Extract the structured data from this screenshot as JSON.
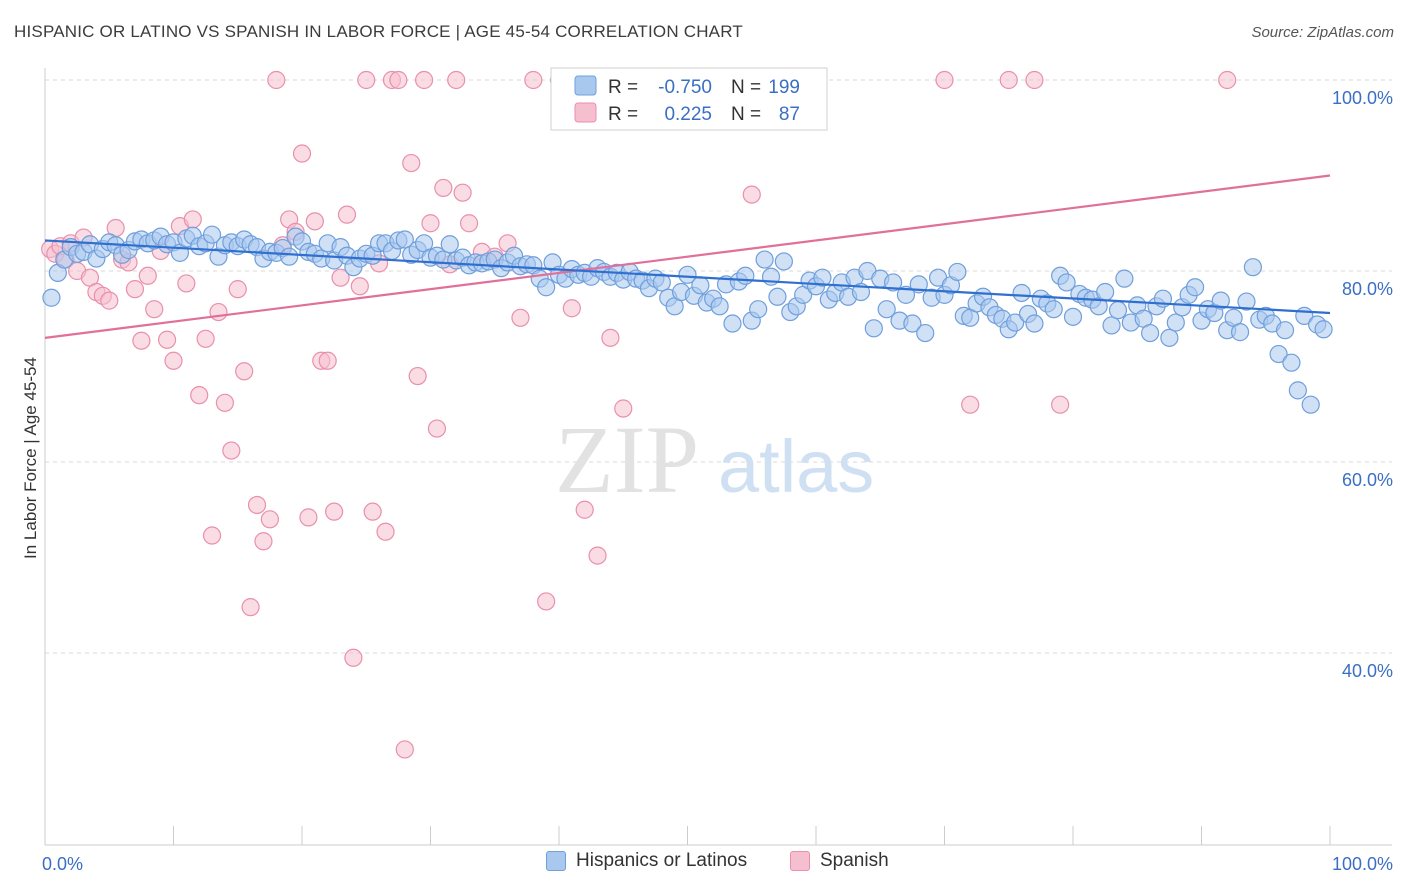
{
  "title": "HISPANIC OR LATINO VS SPANISH IN LABOR FORCE | AGE 45-54 CORRELATION CHART",
  "source": "Source: ZipAtlas.com",
  "watermark": {
    "zip": "ZIP",
    "atlas": "atlas"
  },
  "colors": {
    "blue_fill": "#a9c8ee",
    "blue_stroke": "#6f9fdc",
    "blue_line": "#2f6fcf",
    "pink_fill": "#f6bfd0",
    "pink_stroke": "#ea8fac",
    "pink_line": "#e0709a",
    "label_blue": "#3a6fc4",
    "grid": "#d8d8d8"
  },
  "legend": {
    "items": [
      {
        "r_label": "R =",
        "r_value": "-0.750",
        "n_label": "N =",
        "n_value": "199"
      },
      {
        "r_label": "R =",
        "r_value": "0.225",
        "n_label": "N =",
        "n_value": "87"
      }
    ]
  },
  "bottom_legend": [
    "Hispanics or Latinos",
    "Spanish"
  ],
  "chart_data": {
    "type": "scatter",
    "title": "HISPANIC OR LATINO VS SPANISH IN LABOR FORCE | AGE 45-54 CORRELATION CHART",
    "xlabel": "",
    "ylabel": "In Labor Force | Age 45-54",
    "xlim": [
      0,
      100
    ],
    "ylim": [
      22,
      102
    ],
    "x_ticks": [
      "0.0%",
      "100.0%"
    ],
    "y_ticks": [
      {
        "value": 100,
        "label": "100.0%"
      },
      {
        "value": 80,
        "label": "80.0%"
      },
      {
        "value": 60,
        "label": "60.0%"
      },
      {
        "value": 40,
        "label": "40.0%"
      }
    ],
    "grid": true,
    "legend_position": "top-center",
    "series": [
      {
        "name": "Hispanics or Latinos",
        "r": -0.75,
        "n": 199,
        "trend": {
          "x": [
            0,
            100
          ],
          "y": [
            83.2,
            75.6
          ]
        },
        "points": [
          [
            0.5,
            77.2
          ],
          [
            1,
            79.8
          ],
          [
            1.5,
            81.2
          ],
          [
            2,
            82.5
          ],
          [
            2.5,
            81.8
          ],
          [
            3,
            82.0
          ],
          [
            3.5,
            82.8
          ],
          [
            4,
            81.3
          ],
          [
            4.5,
            82.3
          ],
          [
            5,
            83.0
          ],
          [
            5.5,
            82.7
          ],
          [
            6,
            81.7
          ],
          [
            6.5,
            82.2
          ],
          [
            7,
            83.1
          ],
          [
            7.5,
            83.3
          ],
          [
            8,
            82.9
          ],
          [
            8.5,
            83.2
          ],
          [
            9,
            83.6
          ],
          [
            9.5,
            82.8
          ],
          [
            10,
            83.0
          ],
          [
            10.5,
            81.9
          ],
          [
            11,
            83.4
          ],
          [
            11.5,
            83.7
          ],
          [
            12,
            82.6
          ],
          [
            12.5,
            82.9
          ],
          [
            13,
            83.8
          ],
          [
            13.5,
            81.5
          ],
          [
            14,
            82.7
          ],
          [
            14.5,
            83.0
          ],
          [
            15,
            82.6
          ],
          [
            15.5,
            83.3
          ],
          [
            16,
            82.8
          ],
          [
            16.5,
            82.5
          ],
          [
            17,
            81.3
          ],
          [
            17.5,
            82.0
          ],
          [
            18,
            81.9
          ],
          [
            18.5,
            82.4
          ],
          [
            19,
            81.5
          ],
          [
            19.5,
            83.6
          ],
          [
            20,
            83.1
          ],
          [
            20.5,
            82.0
          ],
          [
            21,
            81.8
          ],
          [
            21.5,
            81.3
          ],
          [
            22,
            82.9
          ],
          [
            22.5,
            81.1
          ],
          [
            23,
            82.5
          ],
          [
            23.5,
            81.6
          ],
          [
            24,
            80.4
          ],
          [
            24.5,
            81.3
          ],
          [
            25,
            81.8
          ],
          [
            25.5,
            81.6
          ],
          [
            26,
            82.9
          ],
          [
            26.5,
            82.9
          ],
          [
            27,
            82.1
          ],
          [
            27.5,
            83.2
          ],
          [
            28,
            83.3
          ],
          [
            28.5,
            81.7
          ],
          [
            29,
            82.2
          ],
          [
            29.5,
            82.9
          ],
          [
            30,
            81.4
          ],
          [
            30.5,
            81.6
          ],
          [
            31,
            81.2
          ],
          [
            31.5,
            82.8
          ],
          [
            32,
            81.1
          ],
          [
            32.5,
            81.4
          ],
          [
            33,
            80.6
          ],
          [
            33.5,
            80.9
          ],
          [
            34,
            80.8
          ],
          [
            34.5,
            81.0
          ],
          [
            35,
            81.2
          ],
          [
            35.5,
            80.3
          ],
          [
            36,
            80.9
          ],
          [
            36.5,
            81.6
          ],
          [
            37,
            80.5
          ],
          [
            37.5,
            80.7
          ],
          [
            38,
            80.6
          ],
          [
            38.5,
            79.2
          ],
          [
            39,
            78.3
          ],
          [
            39.5,
            80.9
          ],
          [
            40,
            79.6
          ],
          [
            40.5,
            79.2
          ],
          [
            41,
            80.2
          ],
          [
            41.5,
            79.6
          ],
          [
            42,
            79.8
          ],
          [
            42.5,
            79.4
          ],
          [
            43,
            80.3
          ],
          [
            43.5,
            79.9
          ],
          [
            44,
            79.4
          ],
          [
            44.5,
            79.8
          ],
          [
            45,
            79.1
          ],
          [
            45.5,
            79.9
          ],
          [
            46,
            79.2
          ],
          [
            46.5,
            79.0
          ],
          [
            47,
            78.2
          ],
          [
            47.5,
            79.2
          ],
          [
            48,
            78.8
          ],
          [
            48.5,
            77.2
          ],
          [
            49,
            76.3
          ],
          [
            49.5,
            77.8
          ],
          [
            50,
            79.6
          ],
          [
            50.5,
            77.4
          ],
          [
            51,
            78.5
          ],
          [
            51.5,
            76.7
          ],
          [
            52,
            77.1
          ],
          [
            52.5,
            76.3
          ],
          [
            53,
            78.6
          ],
          [
            53.5,
            74.5
          ],
          [
            54,
            78.9
          ],
          [
            54.5,
            79.5
          ],
          [
            55,
            74.8
          ],
          [
            55.5,
            76.0
          ],
          [
            56,
            81.2
          ],
          [
            56.5,
            79.4
          ],
          [
            57,
            77.3
          ],
          [
            57.5,
            81.0
          ],
          [
            58,
            75.7
          ],
          [
            58.5,
            76.3
          ],
          [
            59,
            77.5
          ],
          [
            59.5,
            79.0
          ],
          [
            60,
            78.4
          ],
          [
            60.5,
            79.3
          ],
          [
            61,
            77.0
          ],
          [
            61.5,
            77.7
          ],
          [
            62,
            78.8
          ],
          [
            62.5,
            77.3
          ],
          [
            63,
            79.3
          ],
          [
            63.5,
            77.8
          ],
          [
            64,
            80.0
          ],
          [
            64.5,
            74.0
          ],
          [
            65,
            79.2
          ],
          [
            65.5,
            76.0
          ],
          [
            66,
            78.8
          ],
          [
            66.5,
            74.8
          ],
          [
            67,
            77.5
          ],
          [
            67.5,
            74.5
          ],
          [
            68,
            78.6
          ],
          [
            68.5,
            73.5
          ],
          [
            69,
            77.2
          ],
          [
            69.5,
            79.3
          ],
          [
            70,
            77.5
          ],
          [
            70.5,
            78.5
          ],
          [
            71,
            79.9
          ],
          [
            71.5,
            75.3
          ],
          [
            72,
            75.1
          ],
          [
            72.5,
            76.6
          ],
          [
            73,
            77.3
          ],
          [
            73.5,
            76.2
          ],
          [
            74,
            75.4
          ],
          [
            74.5,
            75.0
          ],
          [
            75,
            73.9
          ],
          [
            75.5,
            74.6
          ],
          [
            76,
            77.7
          ],
          [
            76.5,
            75.5
          ],
          [
            77,
            74.5
          ],
          [
            77.5,
            77.1
          ],
          [
            78,
            76.6
          ],
          [
            78.5,
            76.0
          ],
          [
            79,
            79.5
          ],
          [
            79.5,
            78.8
          ],
          [
            80,
            75.2
          ],
          [
            80.5,
            77.6
          ],
          [
            81,
            77.2
          ],
          [
            81.5,
            77.0
          ],
          [
            82,
            76.3
          ],
          [
            82.5,
            77.8
          ],
          [
            83,
            74.3
          ],
          [
            83.5,
            75.9
          ],
          [
            84,
            79.2
          ],
          [
            84.5,
            74.6
          ],
          [
            85,
            76.4
          ],
          [
            85.5,
            75.0
          ],
          [
            86,
            73.5
          ],
          [
            86.5,
            76.3
          ],
          [
            87,
            77.1
          ],
          [
            87.5,
            73.0
          ],
          [
            88,
            74.6
          ],
          [
            88.5,
            76.2
          ],
          [
            89,
            77.5
          ],
          [
            89.5,
            78.3
          ],
          [
            90,
            74.8
          ],
          [
            90.5,
            76.0
          ],
          [
            91,
            75.6
          ],
          [
            91.5,
            76.9
          ],
          [
            92,
            73.8
          ],
          [
            92.5,
            75.1
          ],
          [
            93,
            73.6
          ],
          [
            93.5,
            76.8
          ],
          [
            94,
            80.4
          ],
          [
            94.5,
            74.9
          ],
          [
            95,
            75.3
          ],
          [
            95.5,
            74.5
          ],
          [
            96,
            71.3
          ],
          [
            96.5,
            73.8
          ],
          [
            97,
            70.4
          ],
          [
            97.5,
            67.5
          ],
          [
            98,
            75.3
          ],
          [
            98.5,
            66.0
          ],
          [
            99,
            74.4
          ],
          [
            99.5,
            73.9
          ]
        ]
      },
      {
        "name": "Spanish",
        "r": 0.225,
        "n": 87,
        "trend": {
          "x": [
            0,
            100
          ],
          "y": [
            73.0,
            90.0
          ]
        },
        "points": [
          [
            0.4,
            82.3
          ],
          [
            0.8,
            81.8
          ],
          [
            1.2,
            82.6
          ],
          [
            1.6,
            81.2
          ],
          [
            2.0,
            82.9
          ],
          [
            2.5,
            80.0
          ],
          [
            3.0,
            83.5
          ],
          [
            3.5,
            79.3
          ],
          [
            4.0,
            77.8
          ],
          [
            4.5,
            77.4
          ],
          [
            5.0,
            76.9
          ],
          [
            5.5,
            84.5
          ],
          [
            6.0,
            81.2
          ],
          [
            6.5,
            80.9
          ],
          [
            7.0,
            78.1
          ],
          [
            7.5,
            72.7
          ],
          [
            8.0,
            79.5
          ],
          [
            8.5,
            76.0
          ],
          [
            9.0,
            82.1
          ],
          [
            9.5,
            72.8
          ],
          [
            10.0,
            70.6
          ],
          [
            10.5,
            84.7
          ],
          [
            11.0,
            78.7
          ],
          [
            11.5,
            85.4
          ],
          [
            12.0,
            67.0
          ],
          [
            12.5,
            72.9
          ],
          [
            13.0,
            52.3
          ],
          [
            13.5,
            75.7
          ],
          [
            14.0,
            66.2
          ],
          [
            14.5,
            61.2
          ],
          [
            15.0,
            78.1
          ],
          [
            15.5,
            69.5
          ],
          [
            16.0,
            44.8
          ],
          [
            16.5,
            55.5
          ],
          [
            17.0,
            51.7
          ],
          [
            17.5,
            54.0
          ],
          [
            18.0,
            100.0
          ],
          [
            18.5,
            82.7
          ],
          [
            19.0,
            85.4
          ],
          [
            19.5,
            84.1
          ],
          [
            20.0,
            92.3
          ],
          [
            20.5,
            54.2
          ],
          [
            21.0,
            85.2
          ],
          [
            21.5,
            70.6
          ],
          [
            22.0,
            70.6
          ],
          [
            22.5,
            54.8
          ],
          [
            23.0,
            79.3
          ],
          [
            23.5,
            85.9
          ],
          [
            24.0,
            39.5
          ],
          [
            24.5,
            78.4
          ],
          [
            25.0,
            100.0
          ],
          [
            25.5,
            54.8
          ],
          [
            26.0,
            80.8
          ],
          [
            26.5,
            52.7
          ],
          [
            27.0,
            100.0
          ],
          [
            27.5,
            100.0
          ],
          [
            28.0,
            29.9
          ],
          [
            28.5,
            91.3
          ],
          [
            29.0,
            69.0
          ],
          [
            29.5,
            100.0
          ],
          [
            30.0,
            85.0
          ],
          [
            30.5,
            63.5
          ],
          [
            31.0,
            88.7
          ],
          [
            31.5,
            80.7
          ],
          [
            32.0,
            100.0
          ],
          [
            32.5,
            88.2
          ],
          [
            33.0,
            85.0
          ],
          [
            34.0,
            82.0
          ],
          [
            35.0,
            81.5
          ],
          [
            36.0,
            82.9
          ],
          [
            37.0,
            75.1
          ],
          [
            38.0,
            100.0
          ],
          [
            39.0,
            45.4
          ],
          [
            40.0,
            100.0
          ],
          [
            41.0,
            76.1
          ],
          [
            42.0,
            55.0
          ],
          [
            43.0,
            50.2
          ],
          [
            44.0,
            73.0
          ],
          [
            45.0,
            65.6
          ],
          [
            46.0,
            100.0
          ],
          [
            55.0,
            88.0
          ],
          [
            70.0,
            100.0
          ],
          [
            72.0,
            66.0
          ],
          [
            75.0,
            100.0
          ],
          [
            77.0,
            100.0
          ],
          [
            79.0,
            66.0
          ],
          [
            92.0,
            100.0
          ]
        ]
      }
    ]
  }
}
